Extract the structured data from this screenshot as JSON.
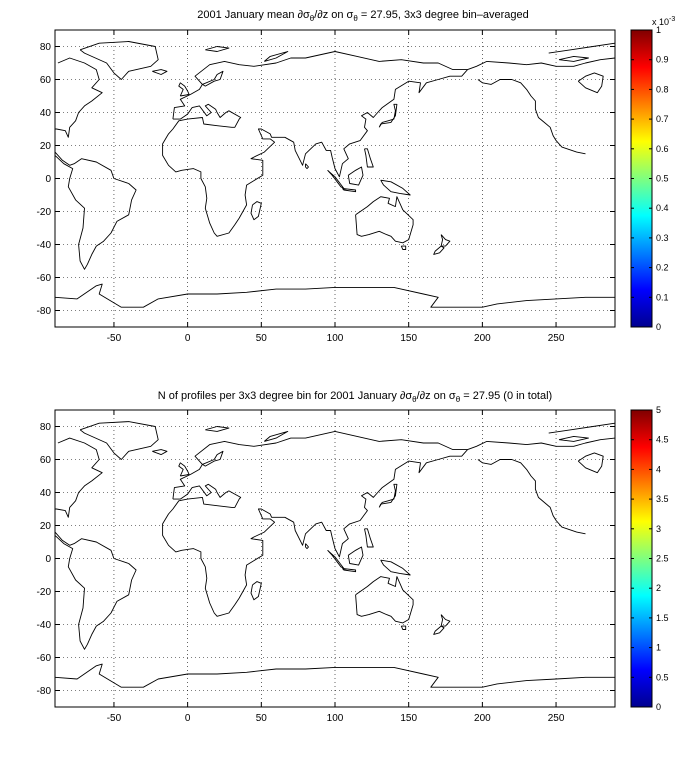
{
  "chart_data": [
    {
      "type": "heatmap",
      "title": "2001 January mean ∂σθ/∂z on σθ = 27.95, 3x3 degree bin–averaged",
      "title_parts": {
        "prefix": "2001 January mean ",
        "expr_sub": "θ",
        "expr_after": "/∂z on σ",
        "eq_sub": "θ",
        "suffix": " = 27.95, 3x3 degree bin–averaged"
      },
      "xlabel": "",
      "ylabel": "",
      "xlim": [
        -90,
        290
      ],
      "ylim": [
        -90,
        90
      ],
      "xticks": [
        -50,
        0,
        50,
        100,
        150,
        200,
        250
      ],
      "yticks": [
        80,
        60,
        40,
        20,
        0,
        -20,
        -40,
        -60,
        -80
      ],
      "grid": true,
      "values": [],
      "colorbar": {
        "min": 0,
        "max": 1,
        "ticks": [
          "0",
          "0.1",
          "0.2",
          "0.3",
          "0.4",
          "0.5",
          "0.6",
          "0.7",
          "0.8",
          "0.9",
          "1"
        ],
        "exponent_prefix": "x 10",
        "exponent": "-3",
        "colormap": "jet"
      },
      "basemap": "world coastlines"
    },
    {
      "type": "heatmap",
      "title": "N of profiles per 3x3 degree bin for 2001 January ∂σθ/∂z on σθ = 27.95 (0 in total)",
      "title_parts": {
        "prefix": "N of profiles per 3x3 degree bin for 2001 January ∂σ",
        "expr_sub": "θ",
        "expr_after": "/∂z on σ",
        "eq_sub": "θ",
        "suffix": " = 27.95 (0 in total)"
      },
      "xlabel": "",
      "ylabel": "",
      "xlim": [
        -90,
        290
      ],
      "ylim": [
        -90,
        90
      ],
      "xticks": [
        -50,
        0,
        50,
        100,
        150,
        200,
        250
      ],
      "yticks": [
        80,
        60,
        40,
        20,
        0,
        -20,
        -40,
        -60,
        -80
      ],
      "grid": true,
      "values": [],
      "total_profiles": 0,
      "colorbar": {
        "min": 0,
        "max": 5,
        "ticks": [
          "0",
          "0.5",
          "1",
          "1.5",
          "2",
          "2.5",
          "3",
          "3.5",
          "4",
          "4.5",
          "5"
        ],
        "colormap": "jet"
      },
      "basemap": "world coastlines"
    }
  ],
  "colors": {
    "axis": "#000000",
    "coast": "#000000",
    "background": "#ffffff"
  }
}
